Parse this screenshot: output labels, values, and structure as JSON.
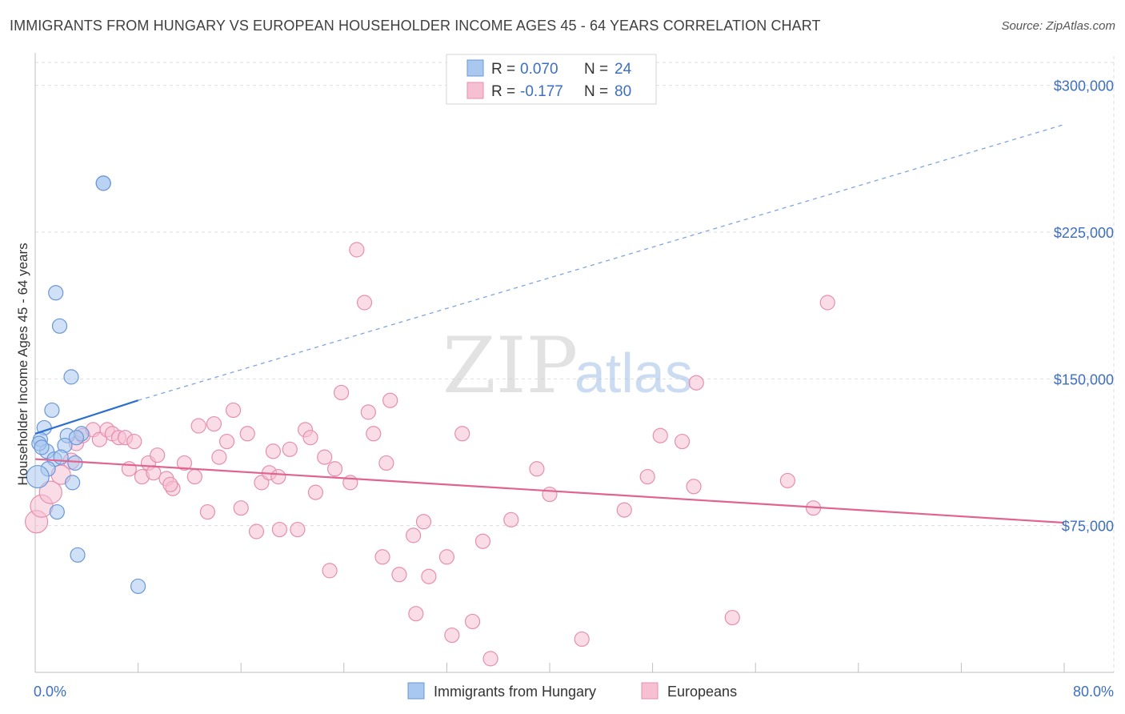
{
  "title": "IMMIGRANTS FROM HUNGARY VS EUROPEAN HOUSEHOLDER INCOME AGES 45 - 64 YEARS CORRELATION CHART",
  "source": "Source: ZipAtlas.com",
  "watermark": {
    "zip": "ZIP",
    "atlas": "atlas"
  },
  "colors": {
    "hungary_fill": "#a9c8f0",
    "hungary_stroke": "#6b97d6",
    "hungary_line": "#2a6fd0",
    "europe_fill": "#f6bfd2",
    "europe_stroke": "#e58fb0",
    "europe_line": "#e0648f",
    "axis_text": "#3d6fc0",
    "grid": "#dddddd"
  },
  "legend_top": {
    "rows": [
      {
        "r_label": "R = ",
        "r_value": "0.070",
        "n_label": "N = ",
        "n_value": "24"
      },
      {
        "r_label": "R = ",
        "r_value": "-0.177",
        "n_label": "N = ",
        "n_value": "80"
      }
    ]
  },
  "legend_bottom": [
    "Immigrants from Hungary",
    "Europeans"
  ],
  "chart_data": {
    "type": "scatter",
    "title": "IMMIGRANTS FROM HUNGARY VS EUROPEAN HOUSEHOLDER INCOME AGES 45 - 64 YEARS CORRELATION CHART",
    "xlabel": "",
    "ylabel": "Householder Income Ages 45 - 64 years",
    "xlim": [
      0,
      80
    ],
    "ylim": [
      0,
      315000
    ],
    "x_tick_labels": [
      "0.0%",
      "80.0%"
    ],
    "y_ticks": [
      75000,
      150000,
      225000,
      300000
    ],
    "y_tick_labels": [
      "$75,000",
      "$150,000",
      "$225,000",
      "$300,000"
    ],
    "grid": true,
    "series": [
      {
        "name": "Immigrants from Hungary",
        "r": 0.07,
        "n": 24,
        "trend": {
          "x0": 0,
          "y0": 122000,
          "x1": 8,
          "y1": 139000,
          "dashed_to_x": 80,
          "dashed_to_y": 280000
        },
        "points": [
          [
            5.3,
            250000,
            9
          ],
          [
            5.3,
            250000,
            9
          ],
          [
            1.6,
            194000,
            9
          ],
          [
            1.9,
            177000,
            9
          ],
          [
            2.8,
            151000,
            9
          ],
          [
            1.3,
            134000,
            9
          ],
          [
            0.7,
            125000,
            9
          ],
          [
            0.4,
            119000,
            9
          ],
          [
            0.9,
            113000,
            9
          ],
          [
            2.5,
            121000,
            9
          ],
          [
            3.6,
            122000,
            9
          ],
          [
            2.3,
            116000,
            9
          ],
          [
            1.5,
            109000,
            9
          ],
          [
            2.0,
            110000,
            9
          ],
          [
            3.1,
            107000,
            9
          ],
          [
            1.0,
            104000,
            9
          ],
          [
            0.2,
            100000,
            14
          ],
          [
            2.9,
            97000,
            9
          ],
          [
            1.7,
            82000,
            9
          ],
          [
            3.3,
            60000,
            9
          ],
          [
            8.0,
            44000,
            9
          ],
          [
            0.3,
            117000,
            9
          ],
          [
            0.5,
            115000,
            9
          ],
          [
            3.2,
            120000,
            9
          ]
        ]
      },
      {
        "name": "Europeans",
        "r": -0.177,
        "n": 80,
        "trend": {
          "x0": 0,
          "y0": 109000,
          "x1": 80,
          "y1": 76500
        },
        "points": [
          [
            0.1,
            77000,
            14
          ],
          [
            0.5,
            85000,
            14
          ],
          [
            1.2,
            92000,
            14
          ],
          [
            2.0,
            101000,
            12
          ],
          [
            2.8,
            108000,
            10
          ],
          [
            3.2,
            117000,
            9
          ],
          [
            3.7,
            121000,
            9
          ],
          [
            4.5,
            124000,
            9
          ],
          [
            5.0,
            119000,
            9
          ],
          [
            5.6,
            124000,
            9
          ],
          [
            6.0,
            122000,
            9
          ],
          [
            6.5,
            120000,
            9
          ],
          [
            7.0,
            120000,
            9
          ],
          [
            7.7,
            118000,
            9
          ],
          [
            7.3,
            104000,
            9
          ],
          [
            8.3,
            100000,
            9
          ],
          [
            8.8,
            107000,
            9
          ],
          [
            9.5,
            111000,
            9
          ],
          [
            9.2,
            102000,
            9
          ],
          [
            10.2,
            99000,
            9
          ],
          [
            10.7,
            94000,
            9
          ],
          [
            10.5,
            96000,
            9
          ],
          [
            11.6,
            107000,
            9
          ],
          [
            12.4,
            100000,
            9
          ],
          [
            12.7,
            126000,
            9
          ],
          [
            13.4,
            82000,
            9
          ],
          [
            13.9,
            127000,
            9
          ],
          [
            14.3,
            110000,
            9
          ],
          [
            14.9,
            118000,
            9
          ],
          [
            15.4,
            134000,
            9
          ],
          [
            16.0,
            84000,
            9
          ],
          [
            16.5,
            122000,
            9
          ],
          [
            17.2,
            72000,
            9
          ],
          [
            17.6,
            97000,
            9
          ],
          [
            18.2,
            102000,
            9
          ],
          [
            18.5,
            113000,
            9
          ],
          [
            18.9,
            100000,
            9
          ],
          [
            19.0,
            73000,
            9
          ],
          [
            19.8,
            114000,
            9
          ],
          [
            20.4,
            73000,
            9
          ],
          [
            21.0,
            124000,
            9
          ],
          [
            21.4,
            120000,
            9
          ],
          [
            21.8,
            92000,
            9
          ],
          [
            22.5,
            110000,
            9
          ],
          [
            22.9,
            52000,
            9
          ],
          [
            23.3,
            104000,
            9
          ],
          [
            23.8,
            143000,
            9
          ],
          [
            24.5,
            97000,
            9
          ],
          [
            25.0,
            216000,
            9
          ],
          [
            25.6,
            189000,
            9
          ],
          [
            25.9,
            133000,
            9
          ],
          [
            26.3,
            122000,
            9
          ],
          [
            27.0,
            59000,
            9
          ],
          [
            27.3,
            107000,
            9
          ],
          [
            27.6,
            139000,
            9
          ],
          [
            28.3,
            50000,
            9
          ],
          [
            29.4,
            70000,
            9
          ],
          [
            29.6,
            30000,
            9
          ],
          [
            30.2,
            77000,
            9
          ],
          [
            30.6,
            49000,
            9
          ],
          [
            32.0,
            59000,
            9
          ],
          [
            32.4,
            19000,
            9
          ],
          [
            34.0,
            26000,
            9
          ],
          [
            34.8,
            67000,
            9
          ],
          [
            35.4,
            7000,
            9
          ],
          [
            37.0,
            78000,
            9
          ],
          [
            39.0,
            104000,
            9
          ],
          [
            40.0,
            91000,
            9
          ],
          [
            42.5,
            17000,
            9
          ],
          [
            45.8,
            83000,
            9
          ],
          [
            47.6,
            100000,
            9
          ],
          [
            48.6,
            121000,
            9
          ],
          [
            50.3,
            118000,
            9
          ],
          [
            51.2,
            95000,
            9
          ],
          [
            51.4,
            148000,
            9
          ],
          [
            54.2,
            28000,
            9
          ],
          [
            58.5,
            98000,
            9
          ],
          [
            60.5,
            84000,
            9
          ],
          [
            61.6,
            189000,
            9
          ],
          [
            33.2,
            122000,
            9
          ]
        ]
      }
    ]
  }
}
